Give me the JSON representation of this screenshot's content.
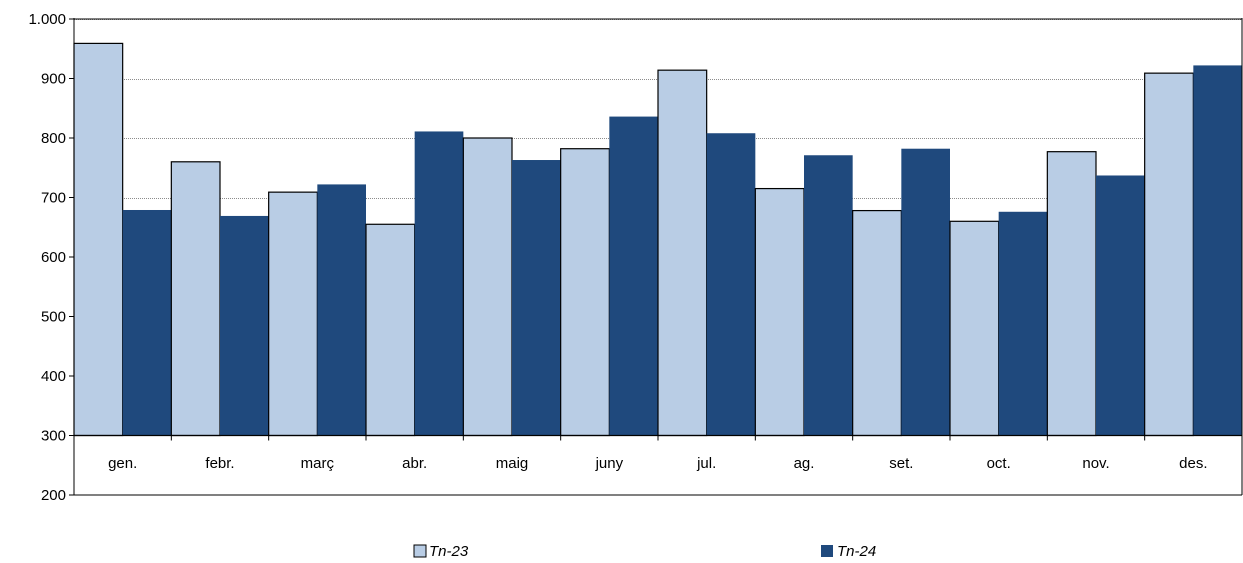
{
  "chart_data": {
    "type": "bar",
    "categories": [
      "gen.",
      "febr.",
      "març",
      "abr.",
      "maig",
      "juny",
      "jul.",
      "ag.",
      "set.",
      "oct.",
      "nov.",
      "des."
    ],
    "series": [
      {
        "name": "Tn-23",
        "color": "#b9cde5",
        "values": [
          959,
          760,
          709,
          655,
          800,
          782,
          914,
          715,
          678,
          660,
          777,
          909
        ]
      },
      {
        "name": "Tn-24",
        "color": "#1f497d",
        "values": [
          679,
          669,
          722,
          811,
          763,
          836,
          808,
          771,
          782,
          676,
          737,
          922
        ]
      }
    ],
    "title": "",
    "xlabel": "",
    "ylabel": "",
    "ylim": [
      200,
      1000
    ],
    "baseline": 300,
    "yticks": [
      "200",
      "300",
      "400",
      "500",
      "600",
      "700",
      "800",
      "900",
      "1.000"
    ],
    "ytick_values": [
      200,
      300,
      400,
      500,
      600,
      700,
      800,
      900,
      1000
    ],
    "grid": true,
    "legend_position": "bottom"
  }
}
